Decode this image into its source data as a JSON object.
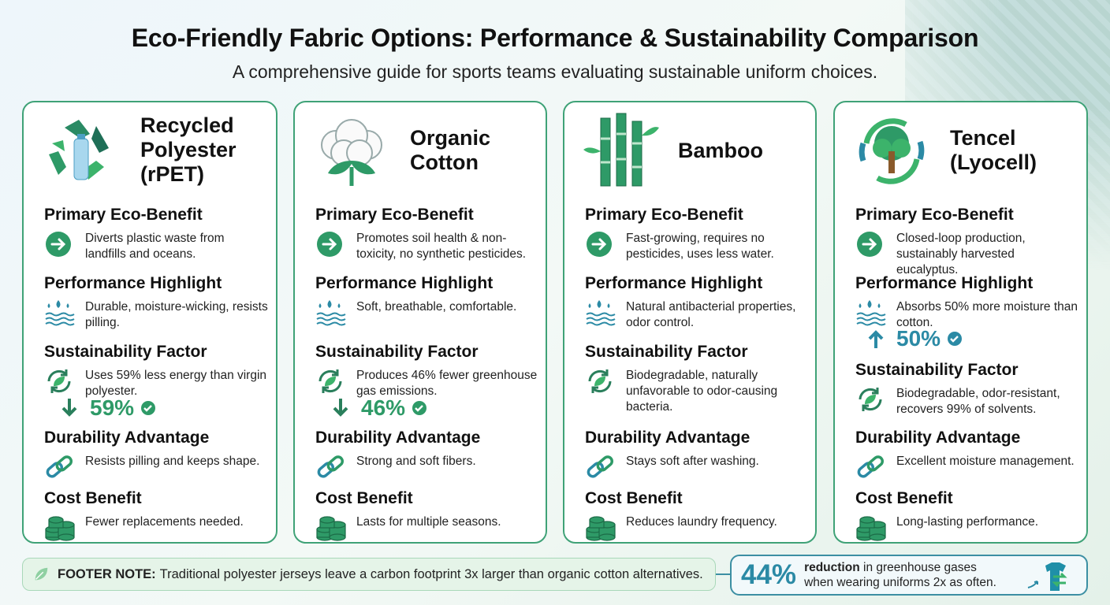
{
  "title": "Eco-Friendly Fabric Options: Performance & Sustainability Comparison",
  "subtitle": "A comprehensive guide for sports teams evaluating sustainable uniform choices.",
  "colors": {
    "green": "#2e9a67",
    "teal": "#2b8aa5",
    "border": "#3fa277"
  },
  "section_titles": {
    "eco": "Primary Eco-Benefit",
    "perf": "Performance Highlight",
    "sust": "Sustainability Factor",
    "dur": "Durability Advantage",
    "cost": "Cost Benefit"
  },
  "cards": [
    {
      "name": "Recycled Polyester (rPET)",
      "icon": "recycle-bottle-icon",
      "eco": "Diverts plastic waste from landfills and oceans.",
      "perf": "Durable, moisture-wicking, resists pilling.",
      "sust": "Uses 59% less energy than virgin polyester.",
      "stat": "59%",
      "dur": "Resists pilling and keeps shape.",
      "cost": "Fewer replacements needed."
    },
    {
      "name": "Organic Cotton",
      "icon": "cotton-boll-icon",
      "eco": "Promotes soil health & non-toxicity, no synthetic pesticides.",
      "perf": "Soft, breathable, comfortable.",
      "sust": "Produces 46% fewer greenhouse gas emissions.",
      "stat": "46%",
      "dur": "Strong and soft fibers.",
      "cost": "Lasts for multiple seasons."
    },
    {
      "name": "Bamboo",
      "icon": "bamboo-icon",
      "eco": "Fast-growing, requires no pesticides, uses less water.",
      "perf": "Natural antibacterial properties, odor control.",
      "sust": "Biodegradable, naturally unfavorable to odor-causing bacteria.",
      "dur": "Stays soft after washing.",
      "cost": "Reduces laundry frequency."
    },
    {
      "name": "Tencel (Lyocell)",
      "icon": "tree-cycle-icon",
      "eco": "Closed-loop production, sustainably harvested eucalyptus.",
      "perf": "Absorbs 50% more moisture than cotton.",
      "stat": "50%",
      "sust": "Biodegradable, odor-resistant, recovers 99% of solvents.",
      "dur": "Excellent moisture management.",
      "cost": "Long-lasting performance."
    }
  ],
  "footer": {
    "label": "FOOTER NOTE:",
    "text": "Traditional polyester jerseys leave a carbon footprint 3x larger than organic cotton alternatives."
  },
  "callout": {
    "value": "44%",
    "bold": "reduction",
    "text1": " in greenhouse gases",
    "text2": "when wearing uniforms 2x as often."
  }
}
